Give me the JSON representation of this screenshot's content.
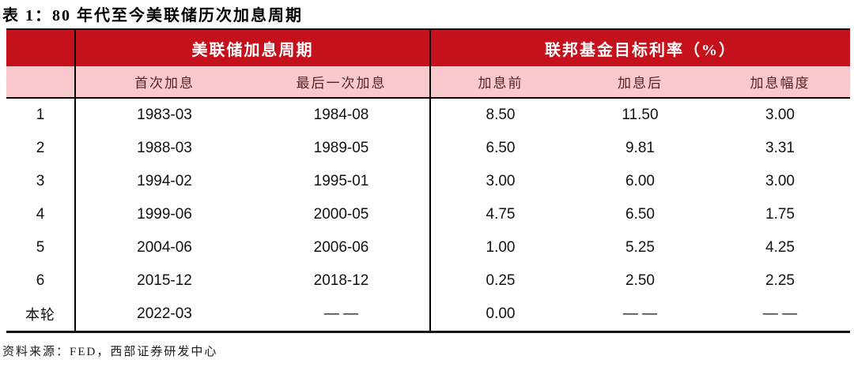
{
  "title": "表 1：80 年代至今美联储历次加息周期",
  "table": {
    "groups": [
      {
        "label": "美联储加息周期",
        "colspan": 2
      },
      {
        "label": "联邦基金目标利率（%）",
        "colspan": 3
      }
    ],
    "columns": [
      "首次加息",
      "最后一次加息",
      "加息前",
      "加息后",
      "加息幅度"
    ],
    "rows": [
      [
        "1",
        "1983-03",
        "1984-08",
        "8.50",
        "11.50",
        "3.00"
      ],
      [
        "2",
        "1988-03",
        "1989-05",
        "6.50",
        "9.81",
        "3.31"
      ],
      [
        "3",
        "1994-02",
        "1995-01",
        "3.00",
        "6.00",
        "3.00"
      ],
      [
        "4",
        "1999-06",
        "2000-05",
        "4.75",
        "6.50",
        "1.75"
      ],
      [
        "5",
        "2004-06",
        "2006-06",
        "1.00",
        "5.25",
        "4.25"
      ],
      [
        "6",
        "2015-12",
        "2018-12",
        "0.25",
        "2.50",
        "2.25"
      ],
      [
        "本轮",
        "2022-03",
        "— —",
        "0.00",
        "— —",
        "— —"
      ]
    ]
  },
  "footer": {
    "source": "资料来源：FED，西部证券研发中心"
  },
  "colors": {
    "header_red": "#C4111C",
    "header_pink": "#F8C8CD",
    "subheader_text": "#542326",
    "border_black": "#000000"
  }
}
